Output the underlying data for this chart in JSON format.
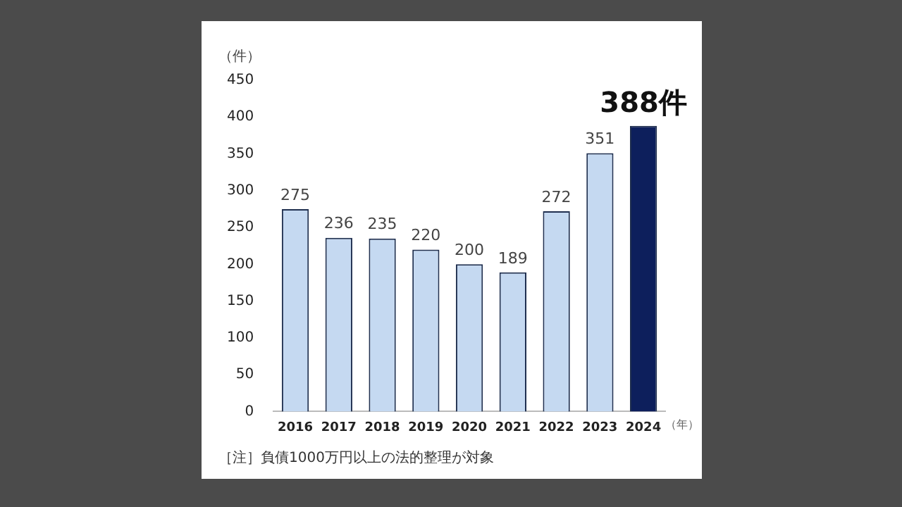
{
  "chart_data": {
    "type": "bar",
    "categories": [
      "2016",
      "2017",
      "2018",
      "2019",
      "2020",
      "2021",
      "2022",
      "2023",
      "2024"
    ],
    "values": [
      275,
      236,
      235,
      220,
      200,
      189,
      272,
      351,
      388
    ],
    "colors": [
      "#c5d9f1",
      "#c5d9f1",
      "#c5d9f1",
      "#c5d9f1",
      "#c5d9f1",
      "#c5d9f1",
      "#c5d9f1",
      "#c5d9f1",
      "#0d1f5c"
    ],
    "value_labels": [
      "275",
      "236",
      "235",
      "220",
      "200",
      "189",
      "272",
      "351",
      "388件"
    ],
    "ylabel": "（件）",
    "xlabel": "（年）",
    "ylim": [
      0,
      450
    ],
    "yticks": [
      0,
      50,
      100,
      150,
      200,
      250,
      300,
      350,
      400,
      450
    ],
    "grid": false,
    "legend": false,
    "annotations": [
      "［注］負債1000万円以上の法的整理が対象"
    ]
  }
}
